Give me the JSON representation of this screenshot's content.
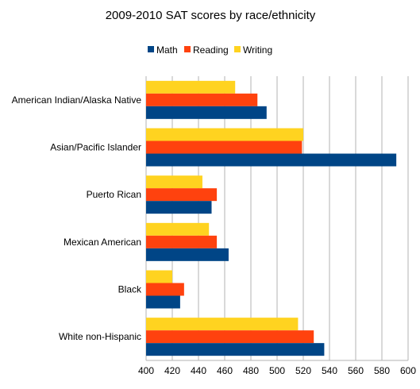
{
  "chart_data": {
    "type": "bar",
    "orientation": "horizontal",
    "title": "2009-2010 SAT scores by race/ethnicity",
    "categories": [
      "American Indian/Alaska Native",
      "Asian/Pacific Islander",
      "Puerto Rican",
      "Mexican American",
      "Black",
      "White non-Hispanic"
    ],
    "series": [
      {
        "name": "Math",
        "color": "#004586",
        "values": [
          492,
          591,
          450,
          463,
          426,
          536
        ]
      },
      {
        "name": "Reading",
        "color": "#ff420e",
        "values": [
          485,
          519,
          454,
          454,
          429,
          528
        ]
      },
      {
        "name": "Writing",
        "color": "#ffd320",
        "values": [
          468,
          520,
          443,
          448,
          420,
          516
        ]
      }
    ],
    "xlim": [
      400,
      600
    ],
    "xticks": [
      400,
      420,
      440,
      460,
      480,
      500,
      520,
      540,
      560,
      580,
      600
    ],
    "grid": true,
    "legend_position": "top"
  }
}
